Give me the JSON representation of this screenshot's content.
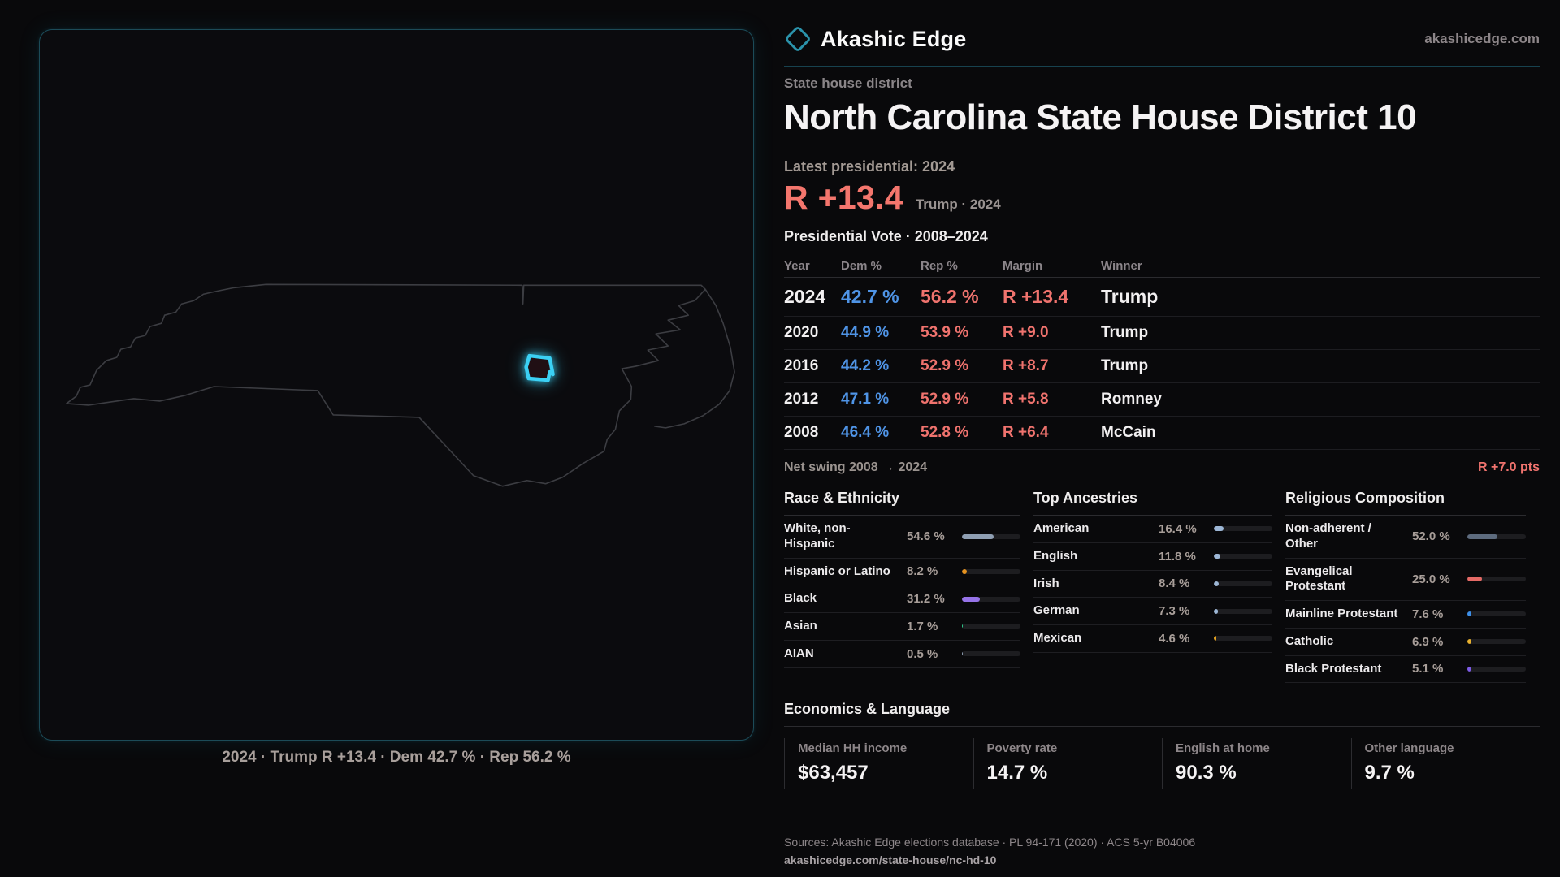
{
  "brand": {
    "name": "Akashic Edge",
    "domain": "akashicedge.com",
    "accent": "#2b93ab"
  },
  "page": {
    "kicker": "State house district",
    "title": "North Carolina State House District 10"
  },
  "latest": {
    "label": "Latest presidential: 2024",
    "value": "R +13.4",
    "note": "Trump · 2024"
  },
  "map": {
    "caption": "2024 · Trump R +13.4 · Dem 42.7 % · Rep 56.2 %",
    "district_color": "#3bd0f4",
    "state_outline_color": "#3c3d42"
  },
  "vote_table": {
    "title": "Presidential Vote · 2008–2024",
    "columns": [
      "Year",
      "Dem %",
      "Rep %",
      "Margin",
      "Winner"
    ],
    "rows": [
      {
        "year": "2024",
        "dem": "42.7 %",
        "rep": "56.2 %",
        "margin": "R +13.4",
        "winner": "Trump",
        "highlight": true
      },
      {
        "year": "2020",
        "dem": "44.9 %",
        "rep": "53.9 %",
        "margin": "R +9.0",
        "winner": "Trump",
        "highlight": false
      },
      {
        "year": "2016",
        "dem": "44.2 %",
        "rep": "52.9 %",
        "margin": "R +8.7",
        "winner": "Trump",
        "highlight": false
      },
      {
        "year": "2012",
        "dem": "47.1 %",
        "rep": "52.9 %",
        "margin": "R +5.8",
        "winner": "Romney",
        "highlight": false
      },
      {
        "year": "2008",
        "dem": "46.4 %",
        "rep": "52.8 %",
        "margin": "R +6.4",
        "winner": "McCain",
        "highlight": false
      }
    ]
  },
  "net_swing": {
    "label": "Net swing 2008 → 2024",
    "value": "R +7.0 pts"
  },
  "demographics": [
    {
      "id": "race",
      "title": "Race & Ethnicity",
      "items": [
        {
          "label": "White, non-Hispanic",
          "value": "54.6 %",
          "pct": 54.6,
          "color": "#8f9fb3"
        },
        {
          "label": "Hispanic or Latino",
          "value": "8.2 %",
          "pct": 8.2,
          "color": "#e5921f"
        },
        {
          "label": "Black",
          "value": "31.2 %",
          "pct": 31.2,
          "color": "#9673e8"
        },
        {
          "label": "Asian",
          "value": "1.7 %",
          "pct": 1.7,
          "color": "#2fd08f"
        },
        {
          "label": "AIAN",
          "value": "0.5 %",
          "pct": 0.5,
          "color": "#8f9fb3"
        }
      ]
    },
    {
      "id": "ancestries",
      "title": "Top Ancestries",
      "items": [
        {
          "label": "American",
          "value": "16.4 %",
          "pct": 16.4,
          "color": "#9db7d6"
        },
        {
          "label": "English",
          "value": "11.8 %",
          "pct": 11.8,
          "color": "#9db7d6"
        },
        {
          "label": "Irish",
          "value": "8.4 %",
          "pct": 8.4,
          "color": "#9db7d6"
        },
        {
          "label": "German",
          "value": "7.3 %",
          "pct": 7.3,
          "color": "#9db7d6"
        },
        {
          "label": "Mexican",
          "value": "4.6 %",
          "pct": 4.6,
          "color": "#e5a21f"
        }
      ]
    },
    {
      "id": "religion",
      "title": "Religious Composition",
      "items": [
        {
          "label": "Non-adherent / Other",
          "value": "52.0 %",
          "pct": 52.0,
          "color": "#5d6b7e"
        },
        {
          "label": "Evangelical Protestant",
          "value": "25.0 %",
          "pct": 25.0,
          "color": "#e56a66"
        },
        {
          "label": "Mainline Protestant",
          "value": "7.6 %",
          "pct": 7.6,
          "color": "#3d8fe8"
        },
        {
          "label": "Catholic",
          "value": "6.9 %",
          "pct": 6.9,
          "color": "#e8b02e"
        },
        {
          "label": "Black Protestant",
          "value": "5.1 %",
          "pct": 5.1,
          "color": "#7e5ce8"
        }
      ]
    }
  ],
  "economics": {
    "title": "Economics & Language",
    "stats": [
      {
        "label": "Median HH income",
        "value": "$63,457"
      },
      {
        "label": "Poverty rate",
        "value": "14.7 %"
      },
      {
        "label": "English at home",
        "value": "90.3 %"
      },
      {
        "label": "Other language",
        "value": "9.7 %"
      }
    ]
  },
  "footer": {
    "sources": "Sources: Akashic Edge elections database · PL 94-171 (2020) · ACS 5-yr B04006",
    "url": "akashicedge.com/state-house/nc-hd-10"
  },
  "colors": {
    "dem": "#4f94e6",
    "rep": "#f0736e"
  }
}
